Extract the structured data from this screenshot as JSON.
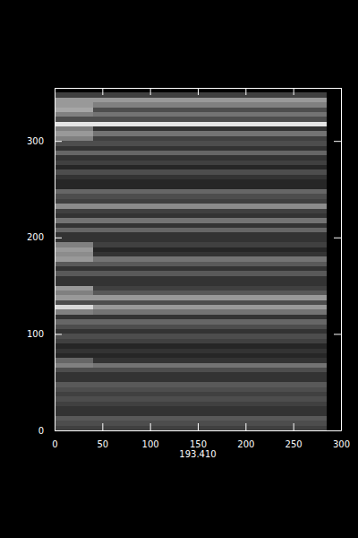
{
  "chart_data": {
    "type": "heatmap",
    "x_label": "193.410",
    "xlim": [
      0,
      300
    ],
    "xticks": [
      0,
      50,
      100,
      150,
      200,
      250,
      300
    ],
    "ylim": [
      0,
      355
    ],
    "yticks": [
      0,
      100,
      200,
      300
    ],
    "zlim": [
      0,
      1
    ],
    "x_edges": [
      0,
      40,
      285
    ],
    "y_edges": [
      0,
      5,
      10,
      15,
      20,
      25,
      30,
      35,
      40,
      45,
      50,
      55,
      60,
      65,
      70,
      75,
      80,
      85,
      90,
      95,
      100,
      105,
      110,
      115,
      120,
      125,
      130,
      135,
      140,
      145,
      150,
      155,
      160,
      165,
      170,
      175,
      180,
      185,
      190,
      195,
      200,
      205,
      210,
      215,
      220,
      225,
      230,
      235,
      240,
      245,
      250,
      255,
      260,
      265,
      270,
      275,
      280,
      285,
      290,
      295,
      300,
      305,
      310,
      315,
      320,
      325,
      330,
      335,
      340,
      345,
      350
    ],
    "z": [
      [
        0.25,
        0.25
      ],
      [
        0.3,
        0.3
      ],
      [
        0.35,
        0.35
      ],
      [
        0.2,
        0.2
      ],
      [
        0.2,
        0.2
      ],
      [
        0.25,
        0.25
      ],
      [
        0.3,
        0.3
      ],
      [
        0.25,
        0.25
      ],
      [
        0.3,
        0.3
      ],
      [
        0.35,
        0.35
      ],
      [
        0.2,
        0.2
      ],
      [
        0.2,
        0.2
      ],
      [
        0.3,
        0.3
      ],
      [
        0.5,
        0.45
      ],
      [
        0.4,
        0.2
      ],
      [
        0.15,
        0.15
      ],
      [
        0.2,
        0.2
      ],
      [
        0.15,
        0.15
      ],
      [
        0.25,
        0.25
      ],
      [
        0.3,
        0.3
      ],
      [
        0.2,
        0.2
      ],
      [
        0.3,
        0.3
      ],
      [
        0.4,
        0.4
      ],
      [
        0.2,
        0.2
      ],
      [
        0.5,
        0.45
      ],
      [
        0.85,
        0.6
      ],
      [
        0.3,
        0.3
      ],
      [
        0.6,
        0.6
      ],
      [
        0.5,
        0.35
      ],
      [
        0.6,
        0.25
      ],
      [
        0.2,
        0.2
      ],
      [
        0.2,
        0.2
      ],
      [
        0.35,
        0.35
      ],
      [
        0.2,
        0.2
      ],
      [
        0.35,
        0.35
      ],
      [
        0.6,
        0.45
      ],
      [
        0.55,
        0.2
      ],
      [
        0.6,
        0.15
      ],
      [
        0.5,
        0.25
      ],
      [
        0.2,
        0.2
      ],
      [
        0.2,
        0.2
      ],
      [
        0.4,
        0.4
      ],
      [
        0.2,
        0.2
      ],
      [
        0.45,
        0.45
      ],
      [
        0.2,
        0.2
      ],
      [
        0.25,
        0.25
      ],
      [
        0.55,
        0.55
      ],
      [
        0.25,
        0.25
      ],
      [
        0.3,
        0.3
      ],
      [
        0.4,
        0.4
      ],
      [
        0.15,
        0.15
      ],
      [
        0.15,
        0.15
      ],
      [
        0.2,
        0.2
      ],
      [
        0.3,
        0.3
      ],
      [
        0.15,
        0.15
      ],
      [
        0.25,
        0.25
      ],
      [
        0.2,
        0.2
      ],
      [
        0.4,
        0.4
      ],
      [
        0.2,
        0.2
      ],
      [
        0.3,
        0.3
      ],
      [
        0.5,
        0.25
      ],
      [
        0.6,
        0.45
      ],
      [
        0.5,
        0.2
      ],
      [
        0.9,
        0.9
      ],
      [
        0.3,
        0.3
      ],
      [
        0.5,
        0.45
      ],
      [
        0.65,
        0.3
      ],
      [
        0.6,
        0.5
      ],
      [
        0.6,
        0.6
      ],
      [
        0.25,
        0.25
      ]
    ]
  }
}
